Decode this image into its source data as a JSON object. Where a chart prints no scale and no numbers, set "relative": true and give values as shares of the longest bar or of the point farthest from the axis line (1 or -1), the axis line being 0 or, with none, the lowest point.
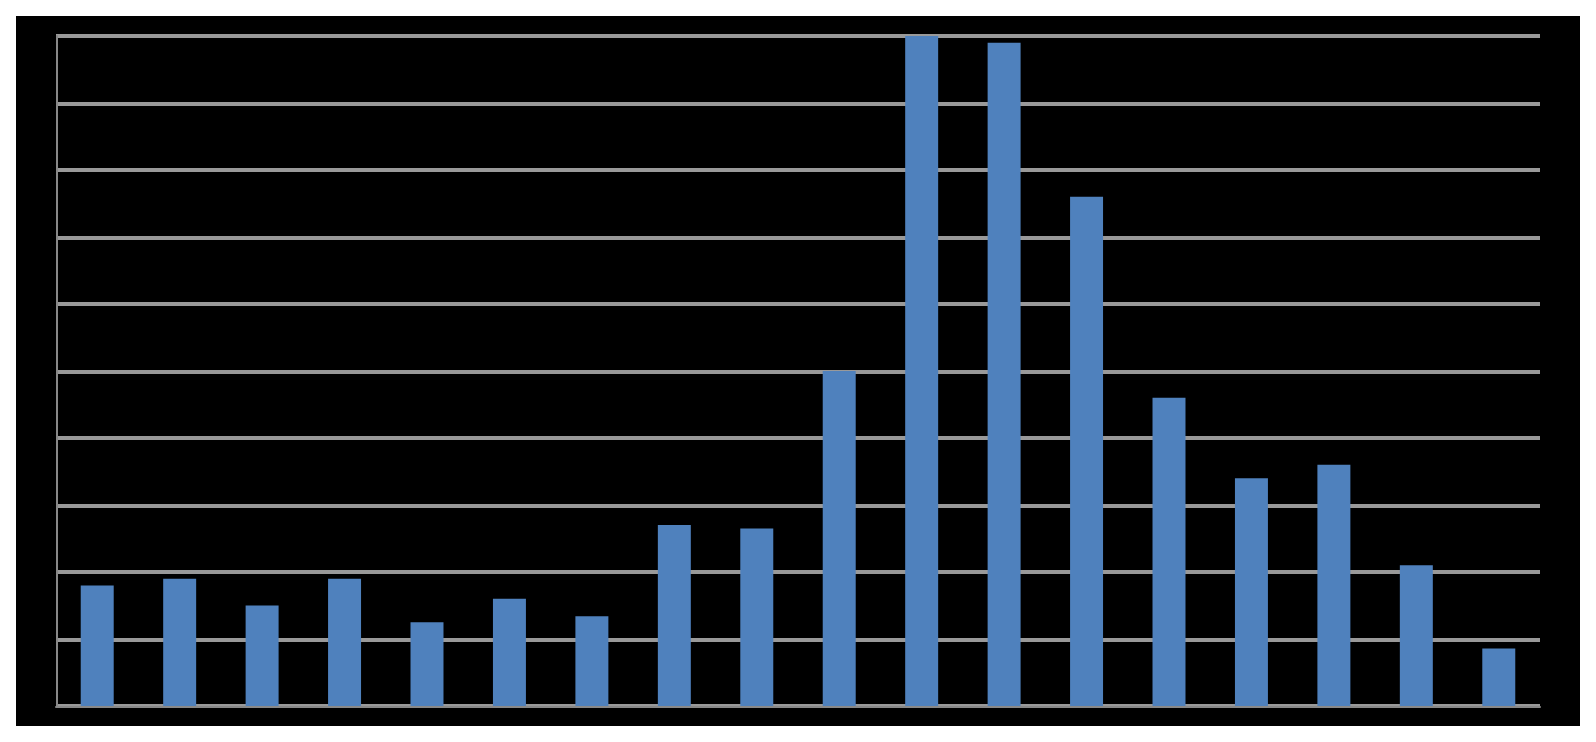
{
  "chart_data": {
    "type": "bar",
    "relative": true,
    "categories": [
      null,
      null,
      null,
      null,
      null,
      null,
      null,
      null,
      null,
      null,
      null,
      null,
      null,
      null,
      null,
      null,
      null,
      null
    ],
    "values": [
      0.18,
      0.19,
      0.15,
      0.19,
      0.125,
      0.16,
      0.134,
      0.27,
      0.265,
      0.5,
      1,
      0.99,
      0.76,
      0.46,
      0.34,
      0.36,
      0.21,
      0.086
    ],
    "color": "#4f81bd",
    "grid": true
  }
}
